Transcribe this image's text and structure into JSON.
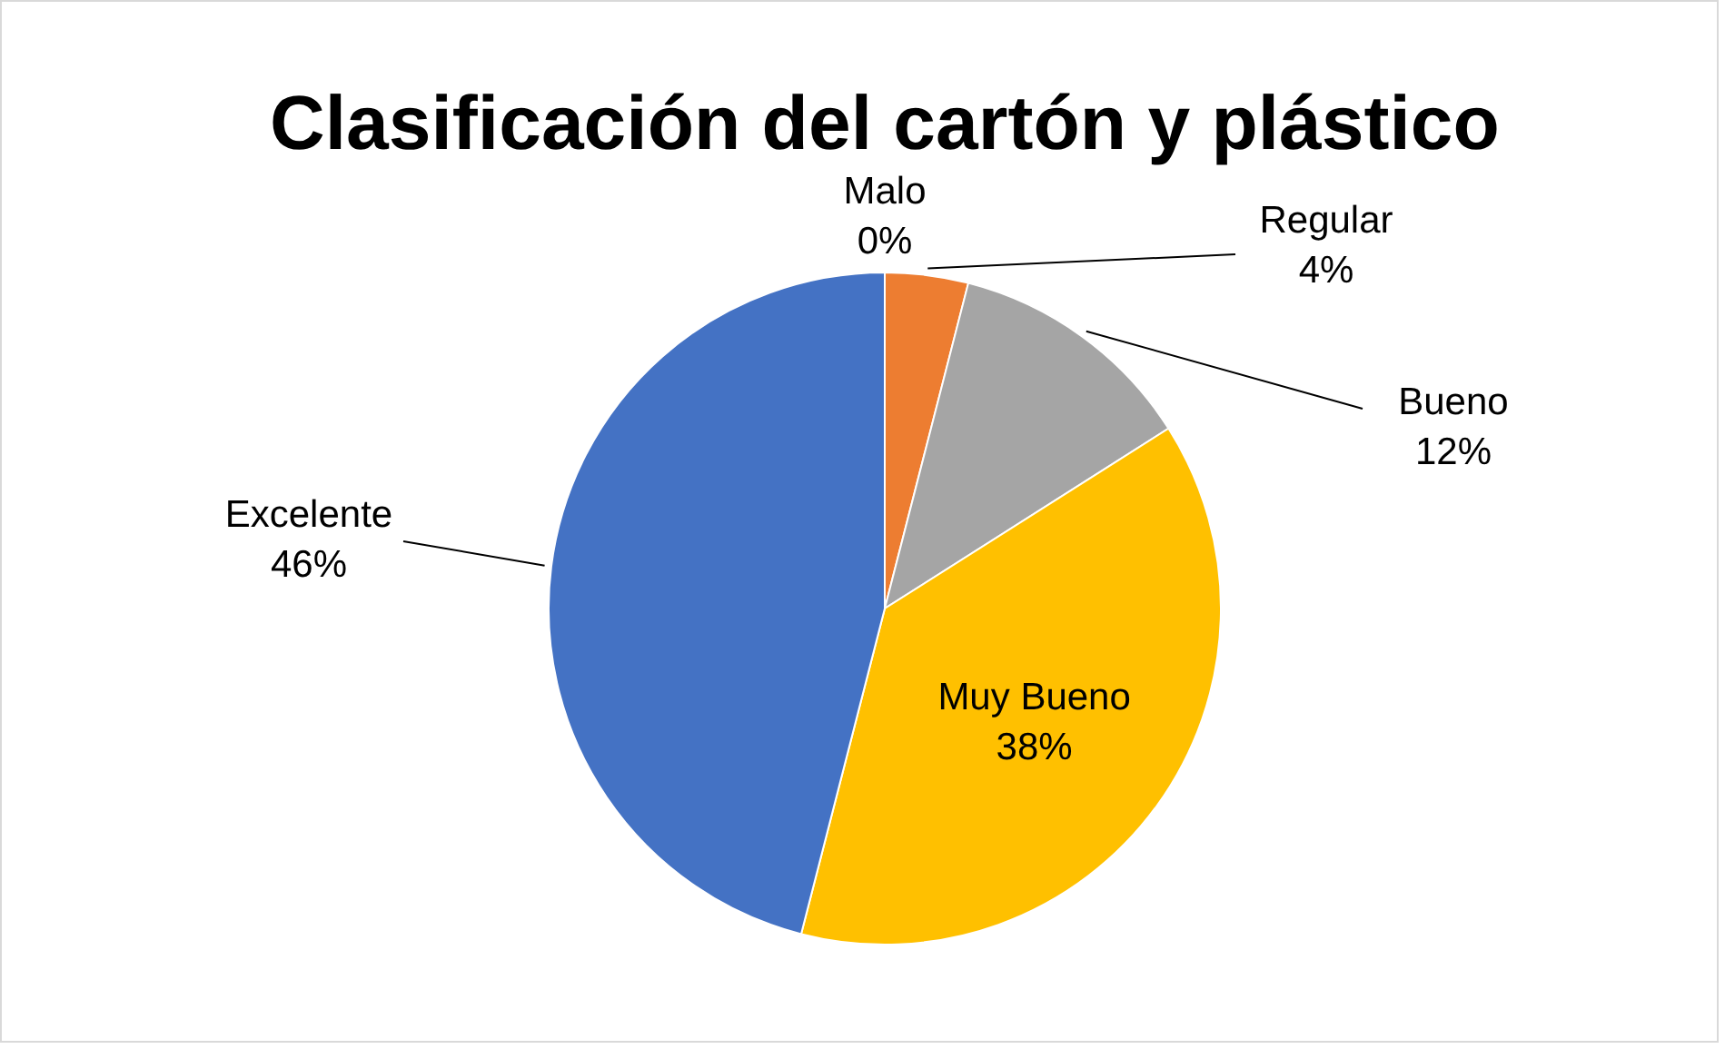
{
  "chart_data": {
    "type": "pie",
    "title": "Clasificación del cartón y plástico",
    "categories": [
      "Malo",
      "Regular",
      "Bueno",
      "Muy Bueno",
      "Excelente"
    ],
    "values": [
      0,
      4,
      12,
      38,
      46
    ],
    "value_labels": [
      "0%",
      "4%",
      "12%",
      "38%",
      "46%"
    ],
    "colors": [
      "#5b9bd5",
      "#ed7d31",
      "#a5a5a5",
      "#ffc000",
      "#4472c4"
    ],
    "legend": false
  }
}
